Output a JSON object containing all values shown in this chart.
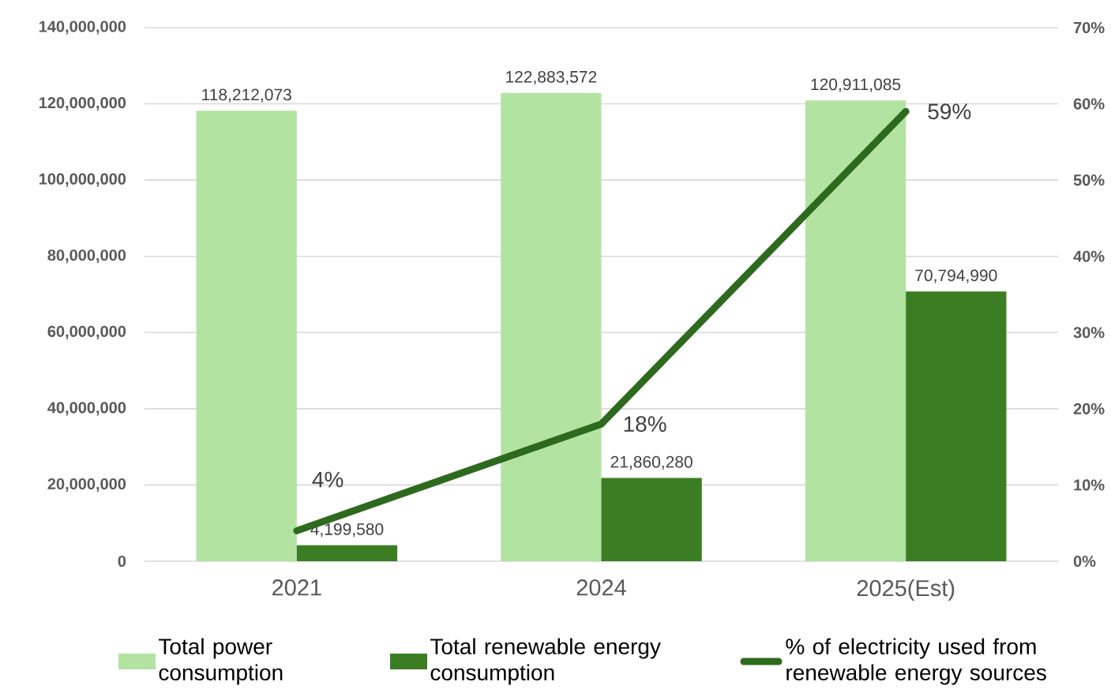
{
  "chart_data": {
    "type": "bar",
    "categories": [
      "2021",
      "2024",
      "2025(Est)"
    ],
    "series": [
      {
        "name": "Total power consumption",
        "type": "bar",
        "color": "#b3e3a1",
        "values": [
          118212073,
          122883572,
          120911085
        ],
        "value_labels": [
          "118,212,073",
          "122,883,572",
          "120,911,085"
        ]
      },
      {
        "name": "Total renewable energy consumption",
        "type": "bar",
        "color": "#3b7d23",
        "values": [
          4199580,
          21860280,
          70794990
        ],
        "value_labels": [
          "4,199,580",
          "21,860,280",
          "70,794,990"
        ]
      },
      {
        "name": "% of electricity used from renewable energy sources",
        "type": "line",
        "axis": "y2",
        "color": "#2e6a1e",
        "values": [
          4,
          18,
          59
        ],
        "value_labels": [
          "4%",
          "18%",
          "59%"
        ]
      }
    ],
    "ylim": [
      0,
      140000000
    ],
    "yticks": [
      0,
      {
        "value": 20000000,
        "label": "20,000,000"
      },
      {
        "value": 40000000,
        "label": "40,000,000"
      },
      {
        "value": 60000000,
        "label": "60,000,000"
      },
      {
        "value": 80000000,
        "label": "80,000,000"
      },
      {
        "value": 100000000,
        "label": "100,000,000"
      },
      {
        "value": 120000000,
        "label": "120,000,000"
      },
      {
        "value": 140000000,
        "label": "140,000,000"
      }
    ],
    "y2lim": [
      0,
      70
    ],
    "y2ticks": [
      {
        "value": 0,
        "label": "0%"
      },
      {
        "value": 10,
        "label": "10%"
      },
      {
        "value": 20,
        "label": "20%"
      },
      {
        "value": 30,
        "label": "30%"
      },
      {
        "value": 40,
        "label": "40%"
      },
      {
        "value": 50,
        "label": "50%"
      },
      {
        "value": 60,
        "label": "60%"
      },
      {
        "value": 70,
        "label": "70%"
      }
    ],
    "grid": "y",
    "legend": "bottom"
  }
}
